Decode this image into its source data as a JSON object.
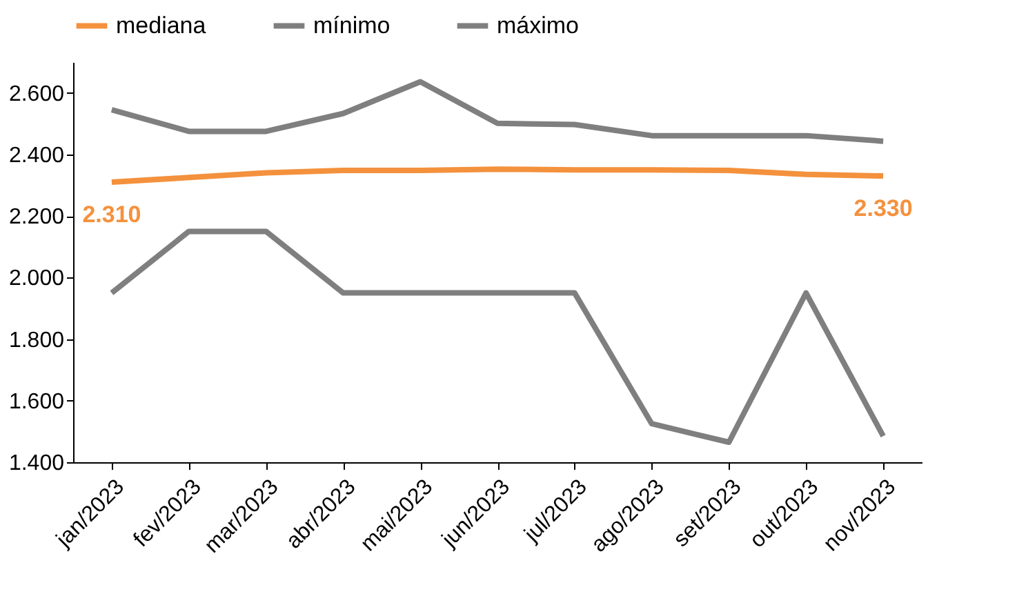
{
  "chart_data": {
    "type": "line",
    "categories": [
      "jan/2023",
      "fev/2023",
      "mar/2023",
      "abr/2023",
      "mai/2023",
      "jun/2023",
      "jul/2023",
      "ago/2023",
      "set/2023",
      "out/2023",
      "nov/2023"
    ],
    "series": [
      {
        "name": "mediana",
        "color": "#f4913d",
        "values": [
          2310,
          2325,
          2340,
          2348,
          2348,
          2352,
          2350,
          2350,
          2348,
          2335,
          2330
        ],
        "value_labels": [
          "2.310",
          null,
          null,
          null,
          null,
          null,
          null,
          null,
          null,
          null,
          "2.330"
        ]
      },
      {
        "name": "mínimo",
        "color": "#7f7f7f",
        "values": [
          1950,
          2150,
          2150,
          1950,
          1950,
          1950,
          1950,
          1525,
          1465,
          1950,
          1485
        ]
      },
      {
        "name": "máximo",
        "color": "#7f7f7f",
        "values": [
          2545,
          2475,
          2475,
          2533,
          2636,
          2501,
          2497,
          2461,
          2461,
          2461,
          2443
        ]
      }
    ],
    "ylim": [
      1400,
      2700
    ],
    "yticks": [
      {
        "value": 1400,
        "label": "1.400"
      },
      {
        "value": 1600,
        "label": "1.600"
      },
      {
        "value": 1800,
        "label": "1.800"
      },
      {
        "value": 2000,
        "label": "2.000"
      },
      {
        "value": 2200,
        "label": "2.200"
      },
      {
        "value": 2400,
        "label": "2.400"
      },
      {
        "value": 2600,
        "label": "2.600"
      }
    ],
    "grid": false,
    "legend": "top",
    "marker": "none",
    "line_style": "solid"
  }
}
